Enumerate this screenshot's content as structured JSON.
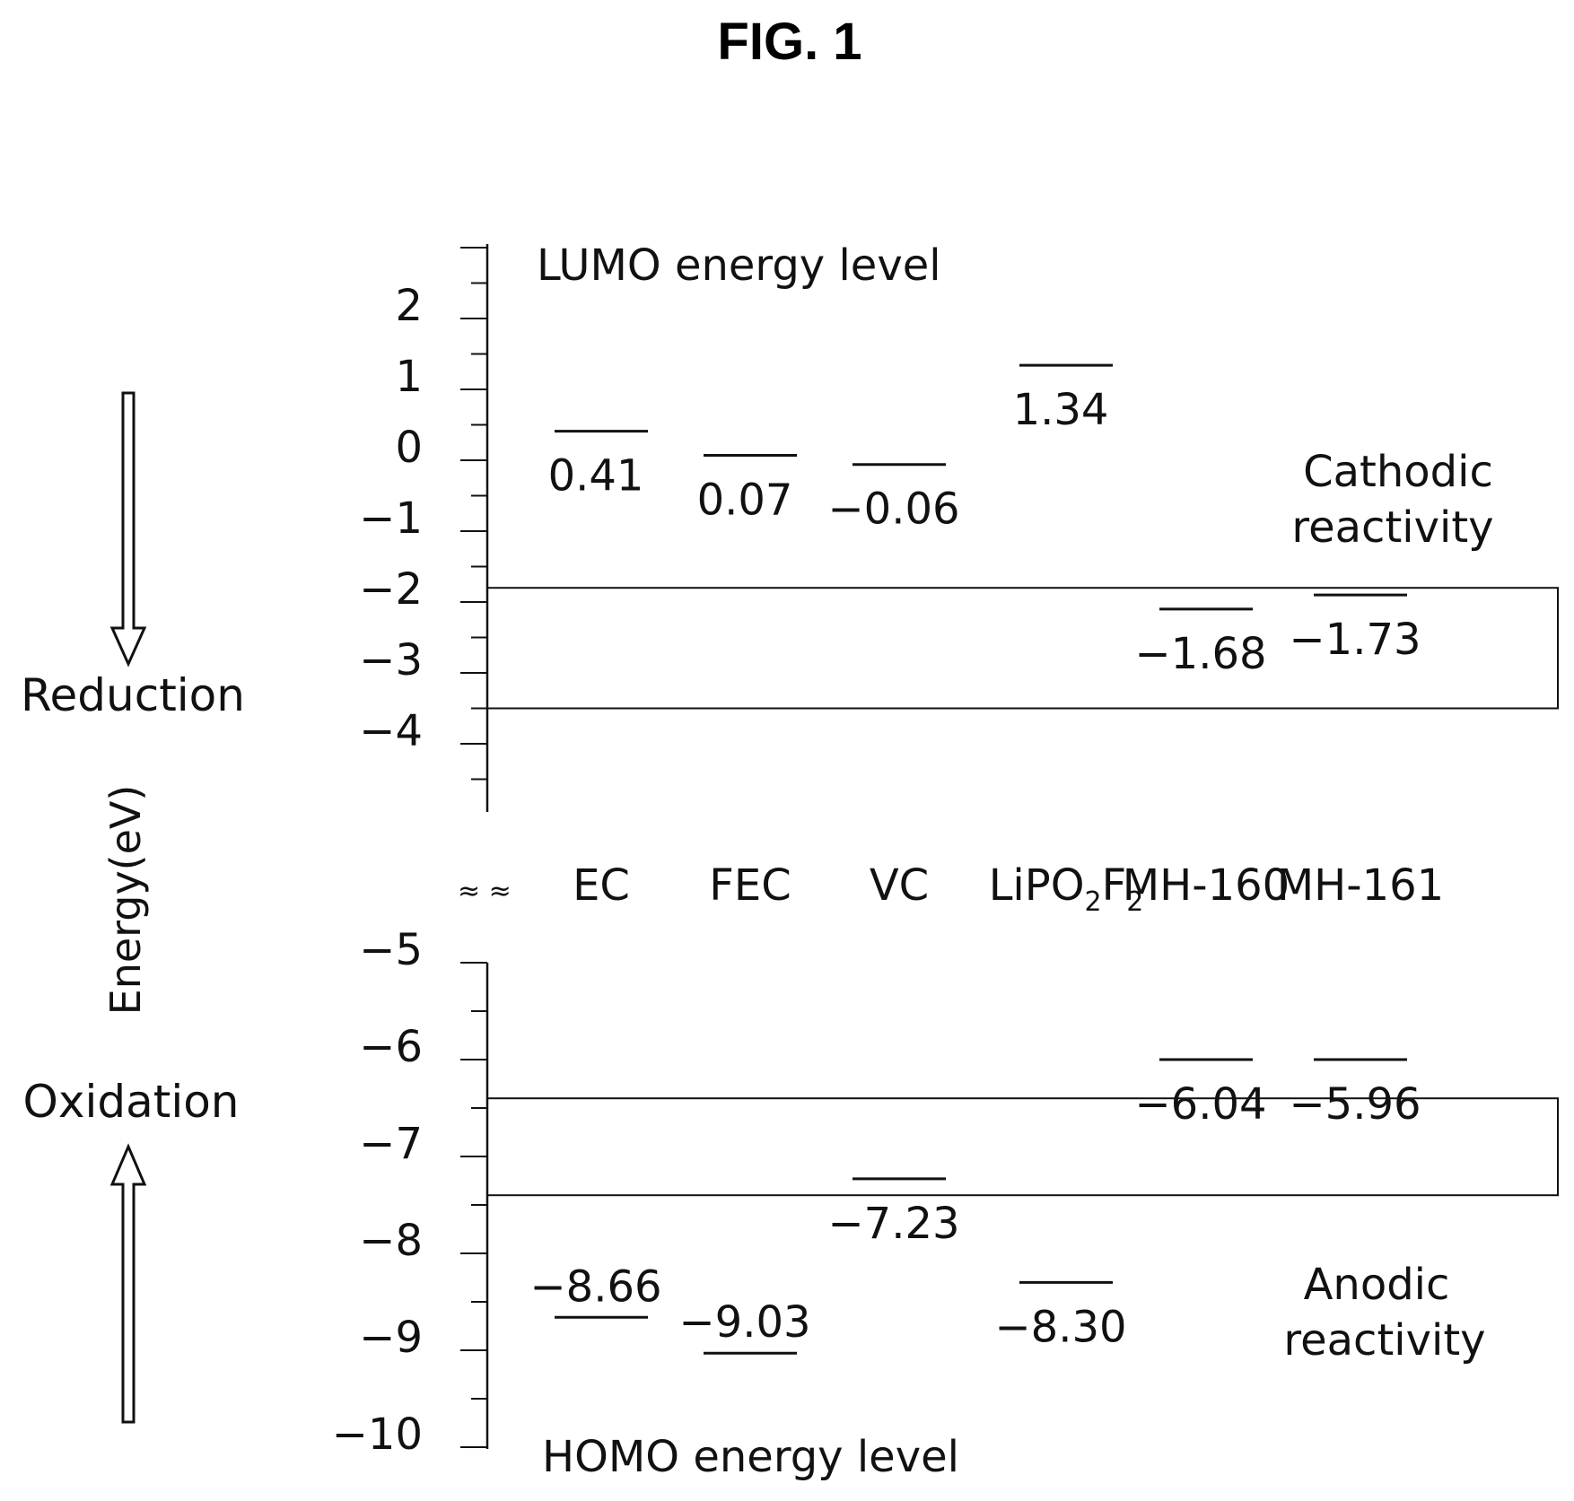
{
  "figure_title": "FIG. 1",
  "chart_data": {
    "type": "energy-level diagram",
    "ylabel": "Energy(eV)",
    "categories": [
      {
        "base": "EC",
        "sub1": "",
        "mid": "",
        "sub2": ""
      },
      {
        "base": "FEC",
        "sub1": "",
        "mid": "",
        "sub2": ""
      },
      {
        "base": "VC",
        "sub1": "",
        "mid": "",
        "sub2": ""
      },
      {
        "base": "LiPO",
        "sub1": "2",
        "mid": "F",
        "sub2": "2"
      },
      {
        "base": "MH-160",
        "sub1": "",
        "mid": "",
        "sub2": ""
      },
      {
        "base": "MH-161",
        "sub1": "",
        "mid": "",
        "sub2": ""
      }
    ],
    "lumo": {
      "title": "LUMO energy level",
      "values": [
        0.41,
        0.07,
        -0.06,
        1.34,
        -2.1,
        -1.9
      ],
      "labels": [
        "0.41",
        "0.07",
        "−0.06",
        "1.34",
        "−1.68",
        "−1.73"
      ],
      "ylim": [
        -5,
        3
      ],
      "yticks": [
        2,
        1,
        0,
        -1,
        -2,
        -3,
        -4
      ],
      "ytick_labels": [
        "2",
        "1",
        "0",
        "−1",
        "−2",
        "−3",
        "−4"
      ],
      "highlight_band": [
        -3.5,
        -1.8
      ],
      "band_label": [
        "Cathodic",
        "reactivity"
      ]
    },
    "homo": {
      "title": "HOMO energy level",
      "values": [
        -8.66,
        -9.03,
        -7.23,
        -8.3,
        -6.0,
        -6.0
      ],
      "labels": [
        "−8.66",
        "−9.03",
        "−7.23",
        "−8.30",
        "−6.04",
        "−5.96"
      ],
      "ylim": [
        -10,
        -5
      ],
      "yticks": [
        -5,
        -6,
        -7,
        -8,
        -9,
        -10
      ],
      "ytick_labels": [
        "−5",
        "−6",
        "−7",
        "−8",
        "−9",
        "−10"
      ],
      "highlight_band": [
        -7.4,
        -6.4
      ],
      "band_label": [
        "Anodic",
        "reactivity"
      ]
    },
    "left_arrows": {
      "reduction": "Reduction",
      "oxidation": "Oxidation"
    }
  }
}
